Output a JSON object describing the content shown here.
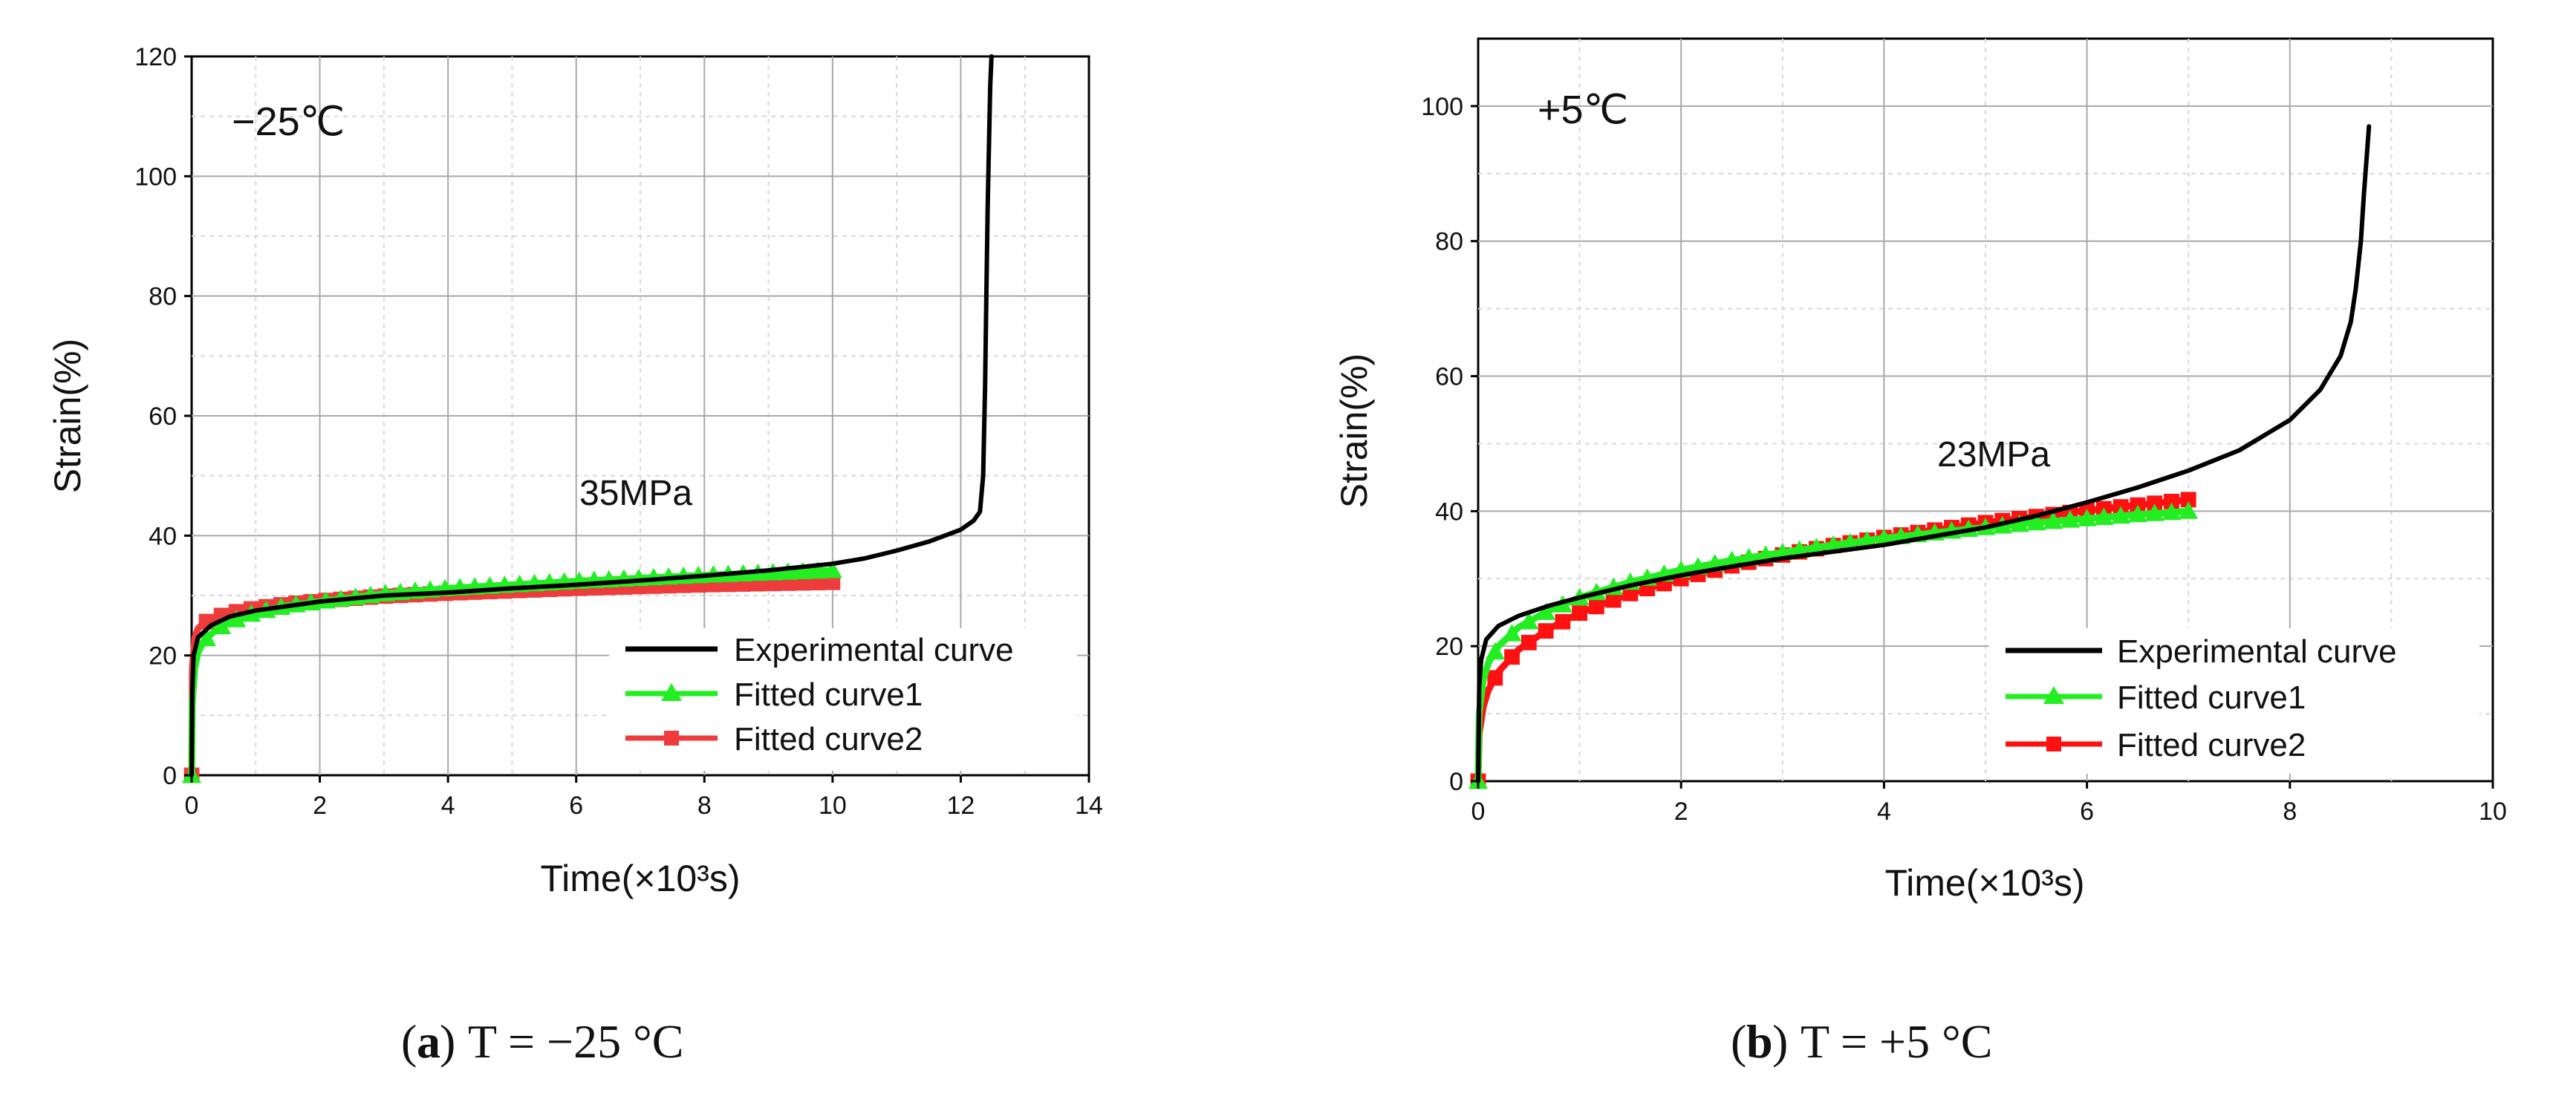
{
  "chart_data": [
    {
      "type": "line",
      "panel": "a",
      "caption": {
        "letter": "a",
        "text": "T = −25 °C"
      },
      "annotation_temperature": "−25℃",
      "annotation_stress": "35MPa",
      "xlabel": "Time(×10³s)",
      "ylabel": "Strain(%)",
      "xlim": [
        0,
        14
      ],
      "ylim": [
        0,
        120
      ],
      "xticks": [
        0,
        2,
        4,
        6,
        8,
        10,
        12,
        14
      ],
      "yticks": [
        0,
        20,
        40,
        60,
        80,
        100,
        120
      ],
      "grid": true,
      "legend_position": "bottom-right",
      "series": [
        {
          "name": "Experimental curve",
          "color": "#000000",
          "marker": "none",
          "x": [
            0,
            0.01,
            0.03,
            0.1,
            0.3,
            0.6,
            1,
            2,
            3,
            4,
            5,
            6,
            7,
            8,
            9,
            10,
            10.5,
            11,
            11.5,
            12,
            12.2,
            12.3,
            12.35,
            12.38,
            12.4,
            12.42,
            12.44,
            12.46,
            12.48
          ],
          "y": [
            0,
            14,
            20,
            23,
            25,
            26.5,
            27.5,
            29,
            30,
            30.5,
            31.2,
            31.8,
            32.5,
            33.3,
            34.2,
            35.3,
            36.2,
            37.5,
            39,
            41,
            42.5,
            44,
            50,
            65,
            80,
            95,
            105,
            115,
            120
          ]
        },
        {
          "name": "Fitted curve1",
          "color": "#22ee22",
          "marker": "triangle",
          "x": [
            0,
            0.01,
            0.05,
            0.1,
            0.2,
            0.4,
            0.7,
            1,
            1.5,
            2,
            3,
            4,
            5,
            6,
            7,
            8,
            9,
            10
          ],
          "y": [
            0,
            12,
            18,
            20.5,
            22.5,
            24.5,
            26,
            27.2,
            28.3,
            29,
            30.3,
            31.2,
            31.8,
            32.4,
            32.9,
            33.4,
            33.8,
            34.2
          ]
        },
        {
          "name": "Fitted curve2",
          "color": "#ee3b3b",
          "marker": "square",
          "x": [
            0,
            0.01,
            0.05,
            0.1,
            0.2,
            0.4,
            0.7,
            1,
            1.5,
            2,
            3,
            4,
            5,
            6,
            7,
            8,
            9,
            10
          ],
          "y": [
            0,
            18,
            23,
            24.5,
            25.5,
            26.5,
            27.3,
            27.9,
            28.6,
            29.1,
            29.9,
            30.4,
            30.8,
            31.2,
            31.5,
            31.8,
            32,
            32.2
          ]
        }
      ]
    },
    {
      "type": "line",
      "panel": "b",
      "caption": {
        "letter": "b",
        "text": "T = +5 °C"
      },
      "annotation_temperature": "+5℃",
      "annotation_stress": "23MPa",
      "xlabel": "Time(×10³s)",
      "ylabel": "Strain(%)",
      "xlim": [
        0,
        10
      ],
      "ylim": [
        0,
        110
      ],
      "xticks": [
        0,
        2,
        4,
        6,
        8,
        10
      ],
      "yticks": [
        0,
        20,
        40,
        60,
        80,
        100
      ],
      "grid": true,
      "legend_position": "bottom-right",
      "series": [
        {
          "name": "Experimental curve",
          "color": "#000000",
          "marker": "none",
          "x": [
            0,
            0.01,
            0.03,
            0.08,
            0.2,
            0.4,
            0.7,
            1,
            1.5,
            2,
            2.5,
            3,
            3.5,
            4,
            4.5,
            5,
            5.5,
            6,
            6.5,
            7,
            7.5,
            8,
            8.3,
            8.5,
            8.6,
            8.65,
            8.7,
            8.73,
            8.76,
            8.78
          ],
          "y": [
            0,
            14,
            18,
            21,
            23,
            24.5,
            26,
            27.2,
            29,
            30.5,
            31.8,
            33,
            34,
            35,
            36.3,
            37.6,
            39.3,
            41.3,
            43.5,
            46,
            49,
            53.5,
            58,
            63,
            68,
            73,
            80,
            87,
            93,
            97
          ]
        },
        {
          "name": "Fitted curve1",
          "color": "#22ee22",
          "marker": "triangle",
          "x": [
            0,
            0.01,
            0.05,
            0.1,
            0.2,
            0.4,
            0.7,
            1,
            1.5,
            2,
            2.5,
            3,
            3.5,
            4,
            4.5,
            5,
            5.5,
            6,
            6.5,
            7
          ],
          "y": [
            0,
            10,
            15,
            17.5,
            20,
            22.8,
            25.3,
            27.2,
            29.5,
            31.3,
            32.7,
            33.9,
            35,
            36,
            36.8,
            37.6,
            38.3,
            38.9,
            39.5,
            40
          ]
        },
        {
          "name": "Fitted curve2",
          "color": "#ff1111",
          "marker": "square",
          "x": [
            0,
            0.01,
            0.05,
            0.1,
            0.2,
            0.4,
            0.7,
            1,
            1.5,
            2,
            2.5,
            3,
            3.5,
            4,
            4.5,
            5,
            5.5,
            6,
            6.5,
            7
          ],
          "y": [
            0,
            7,
            11,
            13.5,
            16.2,
            19.5,
            22.6,
            24.9,
            27.8,
            30,
            31.9,
            33.5,
            34.9,
            36.1,
            37.2,
            38.3,
            39.2,
            40.1,
            40.9,
            41.7
          ]
        }
      ]
    }
  ]
}
